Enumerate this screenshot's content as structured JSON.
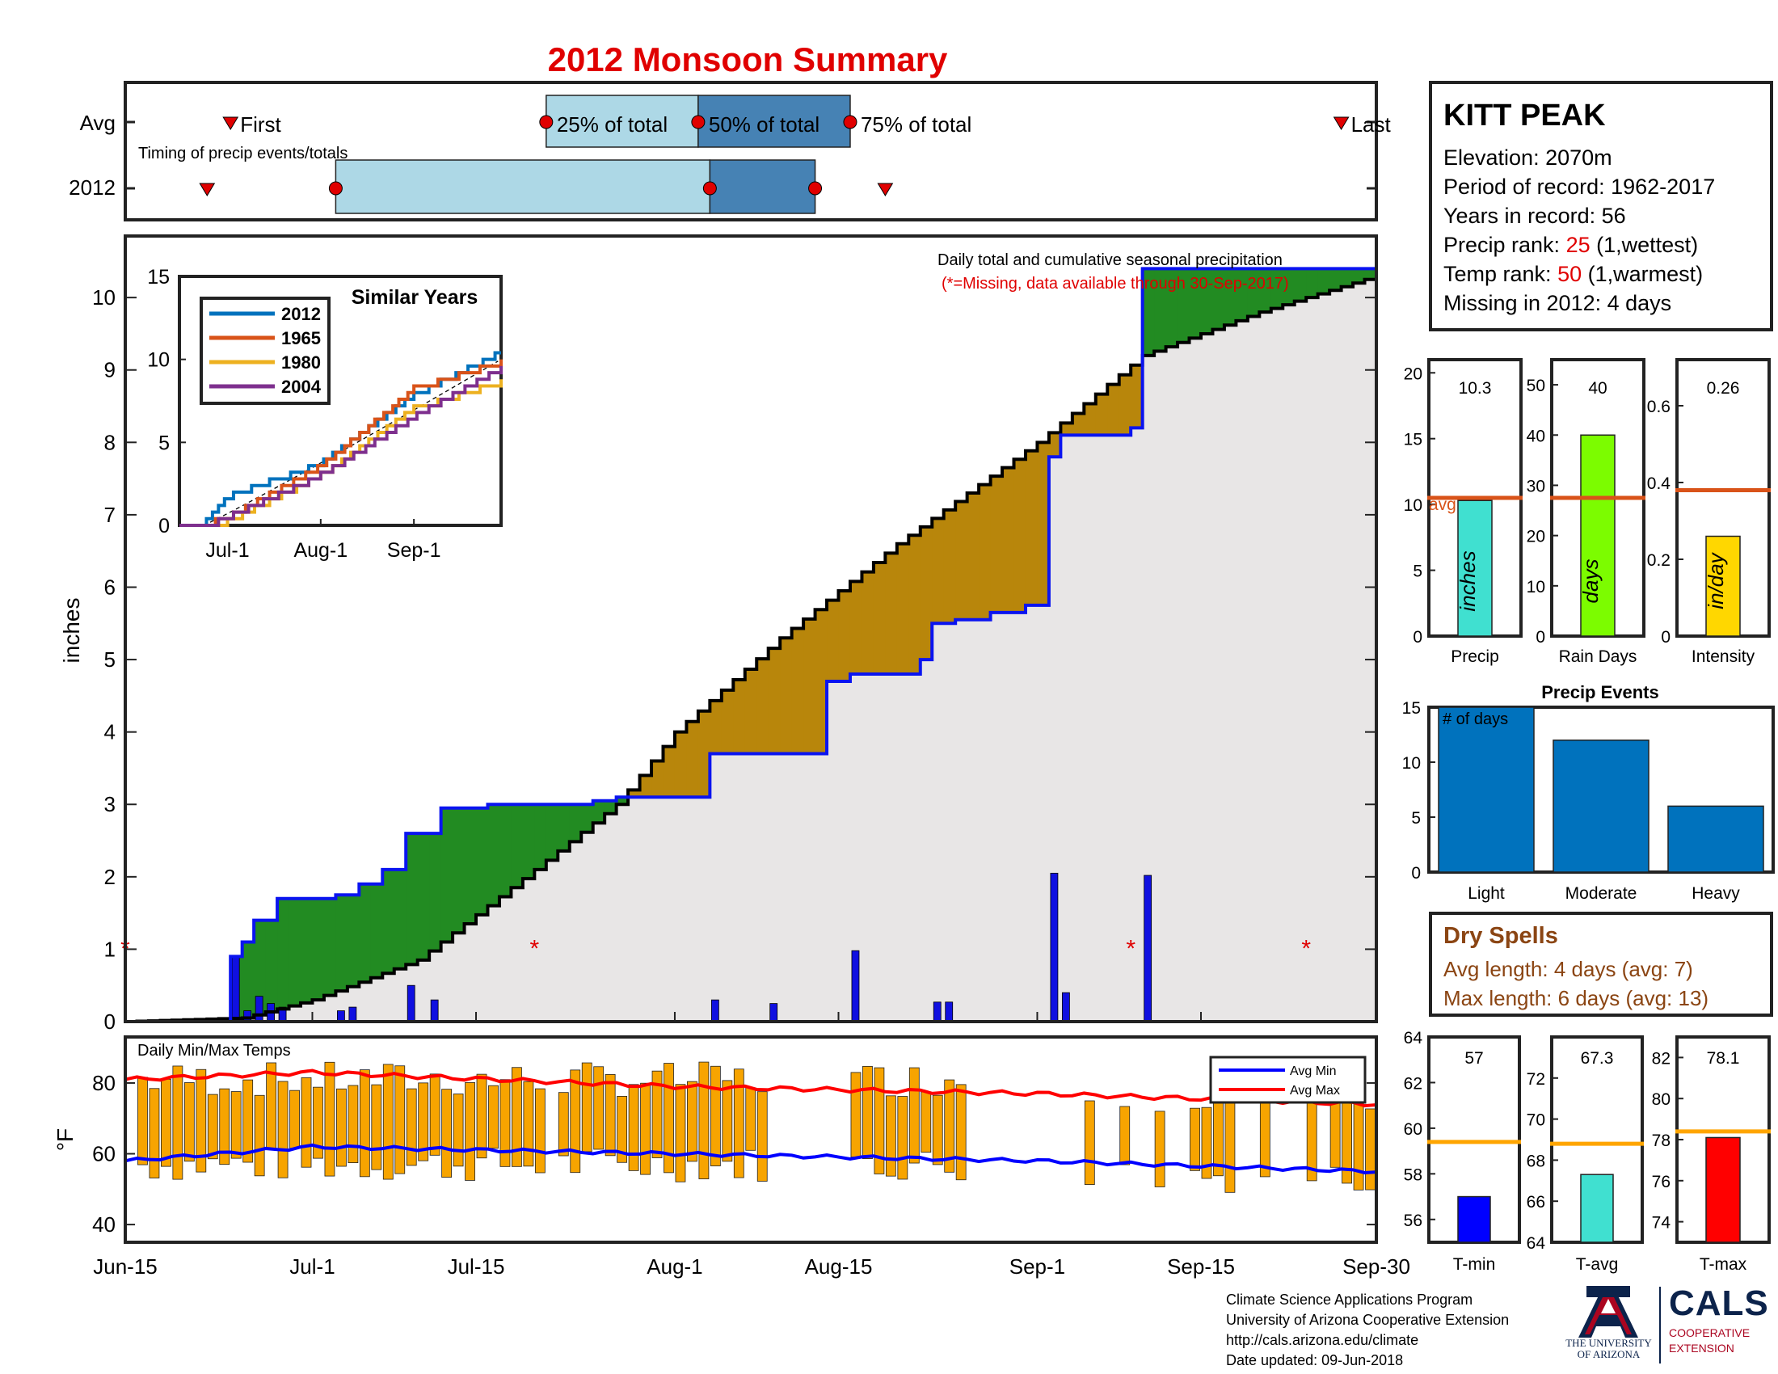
{
  "title": "2012 Monsoon Summary",
  "timing": {
    "row_avg_label": "Avg",
    "row_year_label": "2012",
    "subtitle": "Timing of precip events/totals",
    "first_label": "First",
    "last_label": "Last",
    "p25_label": "25% of total",
    "p50_label": "50% of total",
    "p75_label": "75% of total",
    "avg": {
      "first_day": 9,
      "p25_day": 36,
      "p50_day": 49,
      "p75_day": 62,
      "last_day": 104
    },
    "year": {
      "first_day": 7,
      "p25_day": 18,
      "p50_day": 50,
      "p75_day": 59,
      "last_day": 65
    },
    "colors": {
      "light": "#add8e6",
      "dark": "#4682b4",
      "marker": "#e00000"
    }
  },
  "station": {
    "name": "KITT PEAK",
    "elevation_label": "Elevation: 2070m",
    "period_label": "Period of record: 1962-2017",
    "years_label": "Years in record: 56",
    "precip_rank_prefix": "Precip rank: ",
    "precip_rank_value": "25",
    "precip_rank_suffix": " (1,wettest)",
    "temp_rank_prefix": "Temp rank: ",
    "temp_rank_value": "50",
    "temp_rank_suffix": " (1,warmest)",
    "missing_label": "Missing in 2012: 4 days"
  },
  "main_chart": {
    "annotation_1": "Daily total and cumulative seasonal precipitation",
    "annotation_2": "(*=Missing, data available through 30-Sep-2017)",
    "ylabel": "inches",
    "y_ticks": [
      "0",
      "1",
      "2",
      "3",
      "4",
      "5",
      "6",
      "7",
      "8",
      "9",
      "10"
    ],
    "x_ticks": [
      "Jun-15",
      "Jul-1",
      "Jul-15",
      "Aug-1",
      "Aug-15",
      "Sep-1",
      "Sep-15",
      "Sep-30"
    ]
  },
  "inset": {
    "title": "Similar Years",
    "legend": [
      "2012",
      "1965",
      "1980",
      "2004"
    ],
    "y_ticks": [
      "0",
      "5",
      "10",
      "15"
    ],
    "x_ticks": [
      "Jul-1",
      "Aug-1",
      "Sep-1"
    ]
  },
  "temps": {
    "title": "Daily Min/Max Temps",
    "ylabel": "°F",
    "y_ticks": [
      "40",
      "60",
      "80"
    ],
    "legend_min": "Avg Min",
    "legend_max": "Avg Max"
  },
  "small_bars": {
    "precip": {
      "value_label": "10.3",
      "inner_label": "inches",
      "label": "Precip",
      "avg_label": "avg",
      "y_ticks": [
        "0",
        "5",
        "10",
        "15",
        "20"
      ]
    },
    "rain_days": {
      "value_label": "40",
      "inner_label": "days",
      "label": "Rain Days",
      "y_ticks": [
        "0",
        "10",
        "20",
        "30",
        "40",
        "50"
      ]
    },
    "intensity": {
      "value_label": "0.26",
      "inner_label": "in/day",
      "label": "Intensity",
      "y_ticks": [
        "0",
        "0.2",
        "0.4",
        "0.6"
      ]
    }
  },
  "events": {
    "title": "Precip Events",
    "corner_label": "# of days",
    "y_ticks": [
      "0",
      "5",
      "10",
      "15"
    ]
  },
  "dry_spells": {
    "title": "Dry Spells",
    "avg_label": "Avg length: 4 days (avg: 7)",
    "max_label": "Max length: 6 days (avg: 13)"
  },
  "temp_bars": {
    "tmin": {
      "value_label": "57",
      "label": "T-min",
      "y_ticks": [
        "56",
        "58",
        "60",
        "62",
        "64"
      ]
    },
    "tavg": {
      "value_label": "67.3",
      "label": "T-avg",
      "y_ticks": [
        "64",
        "66",
        "68",
        "70",
        "72"
      ]
    },
    "tmax": {
      "value_label": "78.1",
      "label": "T-max",
      "y_ticks": [
        "74",
        "76",
        "78",
        "80",
        "82"
      ]
    }
  },
  "footer": {
    "line1": "Climate Science Applications Program",
    "line2": "University of Arizona Cooperative Extension",
    "line3": "http://cals.arizona.edu/climate",
    "line4": " Date updated: 09-Jun-2018"
  },
  "logos": {
    "ua_line1": "THE UNIVERSITY",
    "ua_line2": "OF ARIZONA",
    "cals": "CALS",
    "cals_sub1": "COOPERATIVE",
    "cals_sub2": "EXTENSION"
  },
  "chart_data": [
    {
      "type": "area",
      "title": "Daily total and cumulative seasonal precipitation",
      "ylabel": "inches",
      "ylim": [
        0,
        10.5
      ],
      "xlim": [
        "Jun-15",
        "Sep-30"
      ],
      "series": [
        {
          "name": "",
          "note": "2012 cumulative precip (blue line), dates/inches",
          "x": [
            "Jun-15",
            "Jun-24",
            "Jun-25",
            "Jun-26",
            "Jun-28",
            "Jul-3",
            "Jul-5",
            "Jul-7",
            "Jul-9",
            "Jul-10",
            "Jul-12",
            "Jul-16",
            "Jul-25",
            "Jul-27",
            "Aug-4",
            "Aug-10",
            "Aug-14",
            "Aug-16",
            "Aug-22",
            "Aug-23",
            "Aug-25",
            "Aug-28",
            "Aug-31",
            "Sep-2",
            "Sep-3",
            "Sep-9",
            "Sep-10",
            "Sep-30"
          ],
          "y": [
            0,
            0.9,
            1.1,
            1.4,
            1.7,
            1.75,
            1.9,
            2.1,
            2.6,
            2.6,
            2.95,
            3.0,
            3.05,
            3.1,
            3.7,
            3.7,
            4.7,
            4.8,
            5.0,
            5.5,
            5.55,
            5.65,
            5.75,
            7.8,
            8.1,
            8.2,
            10.4,
            10.4
          ]
        },
        {
          "name": "",
          "note": "Average cumulative precip (black step line), dates/inches",
          "x": [
            "Jun-15",
            "Jun-25",
            "Jul-1",
            "Jul-10",
            "Jul-20",
            "Jul-27",
            "Aug-1",
            "Aug-10",
            "Aug-20",
            "Sep-1",
            "Sep-10",
            "Sep-20",
            "Sep-30"
          ],
          "y": [
            0,
            0.05,
            0.3,
            0.85,
            2.1,
            3.0,
            4.0,
            5.3,
            6.6,
            8.0,
            9.2,
            9.8,
            10.3
          ]
        },
        {
          "name": "",
          "note": "Daily precipitation bars, dates/inches",
          "x": [
            "Jun-24",
            "Jun-25",
            "Jun-26",
            "Jun-27",
            "Jun-28",
            "Jul-3",
            "Jul-4",
            "Jul-9",
            "Jul-11",
            "Aug-4",
            "Aug-9",
            "Aug-16",
            "Aug-23",
            "Aug-24",
            "Sep-2",
            "Sep-3",
            "Sep-10"
          ],
          "y": [
            0.9,
            0.15,
            0.35,
            0.25,
            0.2,
            0.15,
            0.2,
            0.5,
            0.3,
            0.3,
            0.25,
            0.98,
            0.27,
            0.27,
            2.05,
            0.4,
            2.02
          ]
        }
      ],
      "missing_dates": [
        "Jun-15",
        "Jul-20",
        "Sep-9",
        "Sep-24"
      ]
    },
    {
      "type": "line",
      "title": "Similar Years",
      "xlim": [
        "Jun-15",
        "Sep-30"
      ],
      "ylim": [
        0,
        15
      ],
      "series": [
        {
          "name": "2012",
          "values_note": "cumulative inches at Jul-1, Aug-1, Sep-1, Sep-30",
          "y": [
            1.7,
            3.7,
            7.8,
            10.4
          ]
        },
        {
          "name": "1965",
          "y": [
            0.5,
            3.5,
            8.2,
            9.8
          ]
        },
        {
          "name": "1980",
          "y": [
            0.2,
            3.0,
            7.0,
            8.6
          ]
        },
        {
          "name": "2004",
          "y": [
            0.5,
            3.0,
            6.5,
            9.5
          ]
        }
      ]
    },
    {
      "type": "bar",
      "title": "Daily Min/Max Temps",
      "ylabel": "°F",
      "ylim": [
        35,
        93
      ],
      "series": [
        {
          "name": "Avg Min",
          "x": [
            "Jun-15",
            "Jul-1",
            "Aug-1",
            "Sep-1",
            "Sep-30"
          ],
          "y": [
            58,
            62,
            60,
            58,
            55
          ]
        },
        {
          "name": "Avg Max",
          "x": [
            "Jun-15",
            "Jul-1",
            "Aug-1",
            "Sep-1",
            "Sep-30"
          ],
          "y": [
            81,
            83,
            79,
            77,
            74
          ]
        }
      ]
    },
    {
      "type": "bar",
      "categories": [
        "Precip",
        "Rain Days",
        "Intensity"
      ],
      "values": [
        10.3,
        40,
        0.26
      ],
      "averages": [
        10.5,
        27.5,
        0.38
      ],
      "ylims": [
        [
          0,
          21
        ],
        [
          0,
          55
        ],
        [
          0,
          0.72
        ]
      ],
      "colors": [
        "#40e0d0",
        "#7cfc00",
        "#ffd700"
      ]
    },
    {
      "type": "bar",
      "title": "Precip Events",
      "categories": [
        "Light",
        "Moderate",
        "Heavy"
      ],
      "values": [
        15,
        12,
        6
      ],
      "ylim": [
        0,
        15
      ]
    },
    {
      "type": "bar",
      "categories": [
        "T-min",
        "T-avg",
        "T-max"
      ],
      "values": [
        57,
        67.3,
        78.1
      ],
      "averages": [
        59.4,
        68.8,
        78.4
      ],
      "ylims": [
        [
          55,
          64
        ],
        [
          64,
          74
        ],
        [
          73,
          83
        ]
      ],
      "colors": [
        "#0000ff",
        "#40e0d0",
        "#ff0000"
      ]
    }
  ]
}
